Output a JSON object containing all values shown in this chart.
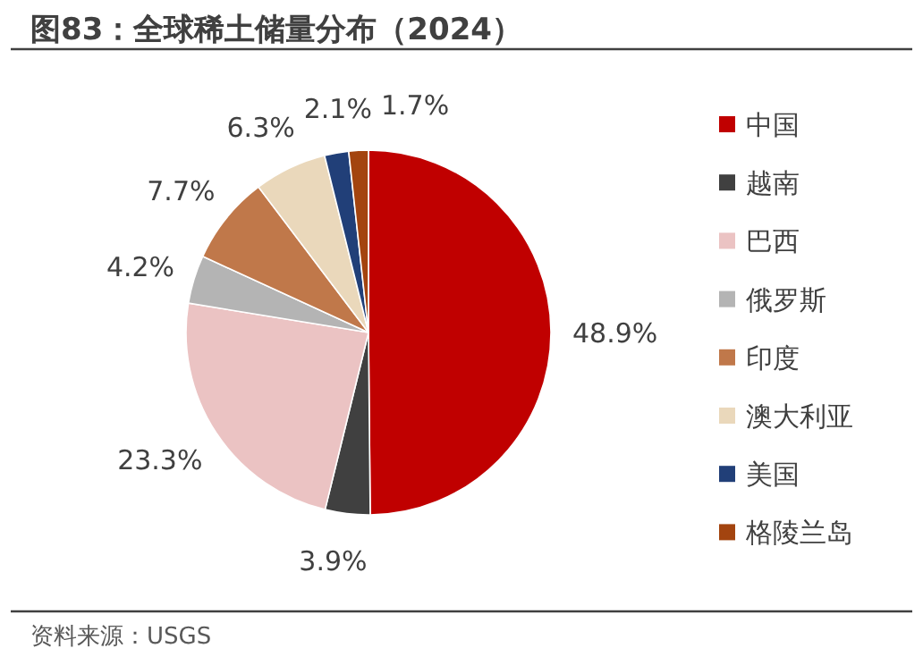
{
  "chart_data": {
    "type": "pie",
    "title": "图83：全球稀土储量分布（2024）",
    "categories": [
      "中国",
      "越南",
      "巴西",
      "俄罗斯",
      "印度",
      "澳大利亚",
      "美国",
      "格陵兰岛"
    ],
    "values": [
      48.9,
      3.9,
      23.3,
      4.2,
      7.7,
      6.3,
      2.1,
      1.7
    ],
    "value_labels": [
      "48.9%",
      "3.9%",
      "23.3%",
      "4.2%",
      "7.7%",
      "6.3%",
      "2.1%",
      "1.7%"
    ],
    "colors": [
      "#c00000",
      "#404040",
      "#ebc3c3",
      "#b4b4b4",
      "#c0784a",
      "#ead8bb",
      "#213f78",
      "#a3440f"
    ],
    "legend": "right",
    "annotations": [
      "资料来源：USGS"
    ]
  }
}
